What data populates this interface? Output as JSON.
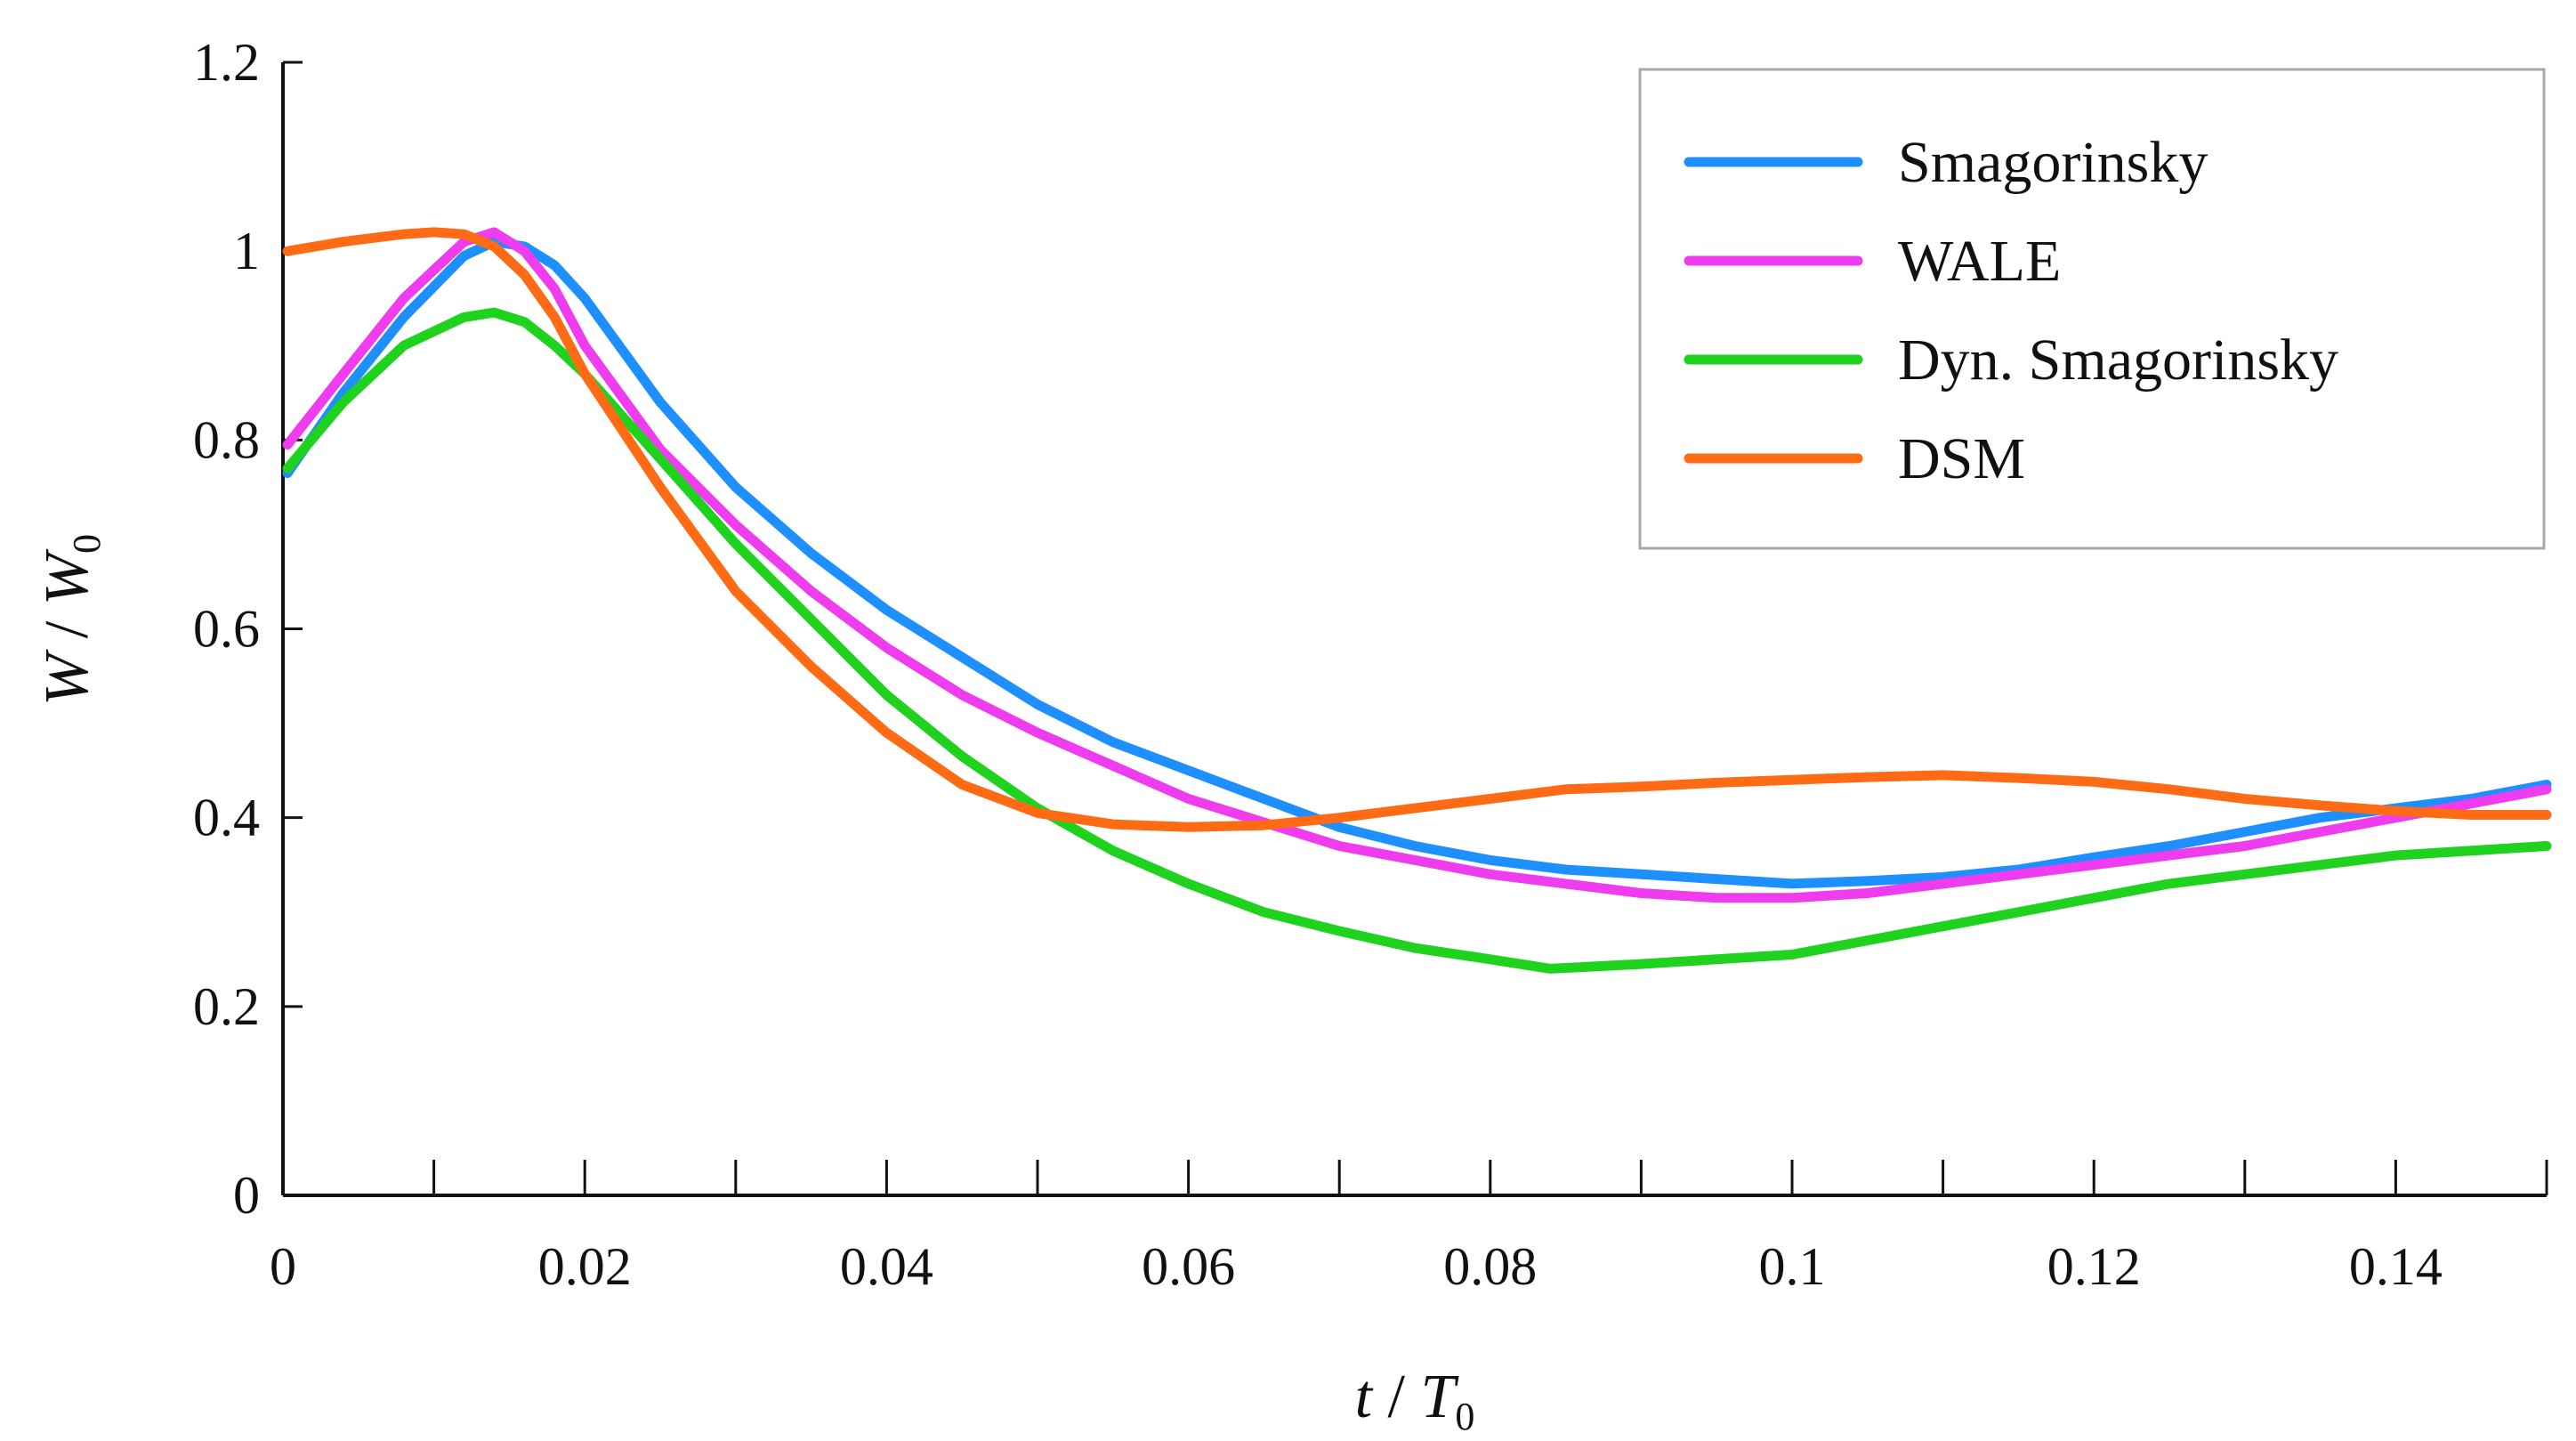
{
  "chart_data": {
    "type": "line",
    "xlabel": {
      "main": "t",
      "sep": " / ",
      "var": "T",
      "sub": "0"
    },
    "ylabel": {
      "main": "W",
      "sep": " / ",
      "var": "W",
      "sub": "0"
    },
    "xlim": [
      0,
      0.15
    ],
    "ylim": [
      0,
      1.2
    ],
    "x_ticks": [
      0,
      0.02,
      0.04,
      0.06,
      0.08,
      0.1,
      0.12,
      0.14
    ],
    "x_tick_labels": [
      "0",
      "0.02",
      "0.04",
      "0.06",
      "0.08",
      "0.1",
      "0.12",
      "0.14"
    ],
    "x_minor_ticks": [
      0.01,
      0.03,
      0.05,
      0.07,
      0.09,
      0.11,
      0.13,
      0.15
    ],
    "y_ticks": [
      0,
      0.2,
      0.4,
      0.6,
      0.8,
      1.0,
      1.2
    ],
    "y_tick_labels": [
      "0",
      "0.2",
      "0.4",
      "0.6",
      "0.8",
      "1",
      "1.2"
    ],
    "grid": false,
    "legend_position": "top-right",
    "series": [
      {
        "name": "Smagorinsky",
        "color": "#1e8fff",
        "x": [
          0.0003,
          0.004,
          0.008,
          0.012,
          0.014,
          0.016,
          0.018,
          0.02,
          0.025,
          0.03,
          0.035,
          0.04,
          0.045,
          0.05,
          0.055,
          0.06,
          0.065,
          0.07,
          0.075,
          0.08,
          0.085,
          0.09,
          0.095,
          0.1,
          0.105,
          0.11,
          0.115,
          0.12,
          0.125,
          0.13,
          0.135,
          0.14,
          0.145,
          0.15
        ],
        "y": [
          0.765,
          0.85,
          0.93,
          0.995,
          1.01,
          1.005,
          0.985,
          0.95,
          0.84,
          0.75,
          0.68,
          0.62,
          0.57,
          0.52,
          0.48,
          0.45,
          0.42,
          0.39,
          0.37,
          0.355,
          0.345,
          0.34,
          0.335,
          0.33,
          0.333,
          0.337,
          0.345,
          0.358,
          0.37,
          0.385,
          0.4,
          0.41,
          0.42,
          0.435
        ]
      },
      {
        "name": "WALE",
        "color": "#ee3cee",
        "x": [
          0.0003,
          0.004,
          0.008,
          0.012,
          0.014,
          0.016,
          0.018,
          0.02,
          0.025,
          0.03,
          0.035,
          0.04,
          0.045,
          0.05,
          0.055,
          0.06,
          0.065,
          0.07,
          0.075,
          0.08,
          0.085,
          0.09,
          0.095,
          0.1,
          0.105,
          0.11,
          0.115,
          0.12,
          0.125,
          0.13,
          0.135,
          0.14,
          0.145,
          0.15
        ],
        "y": [
          0.795,
          0.87,
          0.95,
          1.01,
          1.02,
          1.0,
          0.96,
          0.9,
          0.79,
          0.71,
          0.64,
          0.58,
          0.53,
          0.49,
          0.455,
          0.42,
          0.395,
          0.37,
          0.355,
          0.34,
          0.33,
          0.32,
          0.315,
          0.315,
          0.32,
          0.33,
          0.34,
          0.35,
          0.36,
          0.37,
          0.385,
          0.4,
          0.415,
          0.43
        ]
      },
      {
        "name": "Dyn. Smagorinsky",
        "color": "#1ed21e",
        "x": [
          0.0003,
          0.004,
          0.008,
          0.012,
          0.014,
          0.016,
          0.018,
          0.02,
          0.025,
          0.03,
          0.035,
          0.04,
          0.045,
          0.05,
          0.055,
          0.06,
          0.065,
          0.07,
          0.075,
          0.08,
          0.084,
          0.09,
          0.095,
          0.1,
          0.105,
          0.11,
          0.115,
          0.12,
          0.125,
          0.13,
          0.135,
          0.14,
          0.145,
          0.15
        ],
        "y": [
          0.77,
          0.84,
          0.9,
          0.93,
          0.935,
          0.925,
          0.9,
          0.87,
          0.78,
          0.69,
          0.61,
          0.53,
          0.465,
          0.41,
          0.365,
          0.33,
          0.3,
          0.28,
          0.262,
          0.25,
          0.24,
          0.245,
          0.25,
          0.255,
          0.27,
          0.285,
          0.3,
          0.315,
          0.33,
          0.34,
          0.35,
          0.36,
          0.365,
          0.37
        ]
      },
      {
        "name": "DSM",
        "color": "#ff6a14",
        "x": [
          0.0003,
          0.004,
          0.008,
          0.01,
          0.012,
          0.014,
          0.016,
          0.018,
          0.02,
          0.025,
          0.03,
          0.035,
          0.04,
          0.045,
          0.05,
          0.055,
          0.06,
          0.065,
          0.07,
          0.075,
          0.08,
          0.085,
          0.09,
          0.095,
          0.1,
          0.105,
          0.11,
          0.115,
          0.12,
          0.125,
          0.13,
          0.135,
          0.14,
          0.145,
          0.15
        ],
        "y": [
          1.0,
          1.01,
          1.018,
          1.02,
          1.018,
          1.005,
          0.975,
          0.93,
          0.87,
          0.75,
          0.64,
          0.56,
          0.49,
          0.435,
          0.405,
          0.393,
          0.39,
          0.392,
          0.4,
          0.41,
          0.42,
          0.43,
          0.433,
          0.437,
          0.44,
          0.443,
          0.445,
          0.442,
          0.438,
          0.43,
          0.42,
          0.413,
          0.407,
          0.403,
          0.403
        ]
      }
    ]
  }
}
